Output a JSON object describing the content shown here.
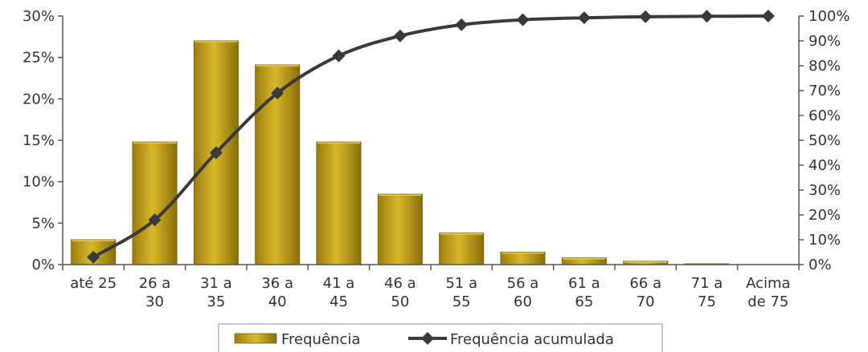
{
  "chart_data": {
    "type": "bar",
    "categories": [
      [
        "até 25"
      ],
      [
        "26 a",
        "30"
      ],
      [
        "31 a",
        "35"
      ],
      [
        "36 a",
        "40"
      ],
      [
        "41 a",
        "45"
      ],
      [
        "46 a",
        "50"
      ],
      [
        "51 a",
        "55"
      ],
      [
        "56 a",
        "60"
      ],
      [
        "61 a",
        "65"
      ],
      [
        "66 a",
        "70"
      ],
      [
        "71 a",
        "75"
      ],
      [
        "Acima",
        "de 75"
      ]
    ],
    "series": [
      {
        "name": "Frequência",
        "type": "bar",
        "axis": "left",
        "color": "#c8a317",
        "values": [
          3.0,
          14.8,
          27.0,
          24.1,
          14.8,
          8.5,
          3.8,
          1.5,
          0.8,
          0.4,
          0.1,
          0.0
        ]
      },
      {
        "name": "Frequência acumulada",
        "type": "line",
        "axis": "right",
        "color": "#3a3a3a",
        "marker": "diamond",
        "values": [
          3,
          18,
          45,
          69,
          84,
          92,
          96.5,
          98.5,
          99.3,
          99.7,
          99.9,
          100
        ]
      }
    ],
    "y_left": {
      "ylim": [
        0,
        30
      ],
      "ticks": [
        0,
        5,
        10,
        15,
        20,
        25,
        30
      ],
      "tick_labels": [
        "0%",
        "5%",
        "10%",
        "15%",
        "20%",
        "25%",
        "30%"
      ]
    },
    "y_right": {
      "ylim": [
        0,
        100
      ],
      "ticks": [
        0,
        10,
        20,
        30,
        40,
        50,
        60,
        70,
        80,
        90,
        100
      ],
      "tick_labels": [
        "0%",
        "10%",
        "20%",
        "30%",
        "40%",
        "50%",
        "60%",
        "70%",
        "80%",
        "90%",
        "100%"
      ]
    },
    "grid": false,
    "legend_position": "bottom",
    "colors": {
      "axis": "#555555",
      "bar_light": "#e9cf57",
      "bar_dark": "#8a6e0a"
    }
  }
}
